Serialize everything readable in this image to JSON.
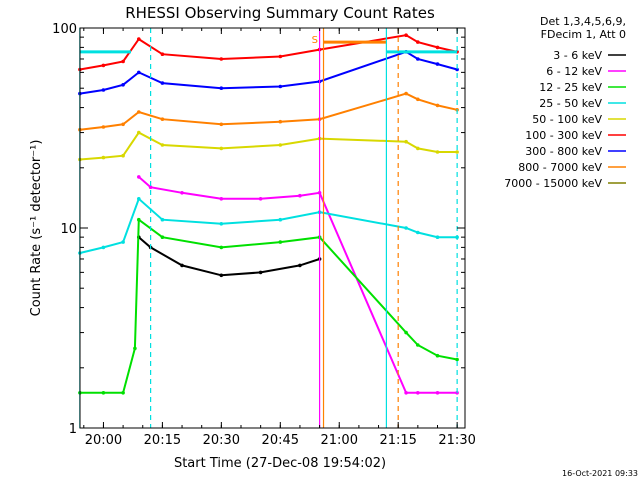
{
  "chart_data": {
    "type": "line",
    "title": "RHESSI Observing Summary Count Rates",
    "xlabel": "Start Time (27-Dec-08 19:54:02)",
    "ylabel": "Count Rate (s⁻¹ detector⁻¹)",
    "y_scale": "log",
    "ylim": [
      1,
      100
    ],
    "xlim": [
      "19:54:02",
      "21:32:00"
    ],
    "x_ticks": [
      "20:00",
      "20:15",
      "20:30",
      "20:45",
      "21:00",
      "21:15",
      "21:30"
    ],
    "y_ticks": [
      "1",
      "10",
      "100"
    ],
    "grid": false,
    "legend_position": "right",
    "legend_header": [
      "Det 1,3,4,5,6,9,",
      "FDecim 1, Att 0"
    ],
    "series": [
      {
        "name": "3 - 6 keV",
        "color": "#000000",
        "x": [
          "20:09",
          "20:12",
          "20:20",
          "20:30",
          "20:40",
          "20:50",
          "20:55"
        ],
        "y": [
          9,
          8,
          6.5,
          5.8,
          6,
          6.5,
          7
        ]
      },
      {
        "name": "6 - 12 keV",
        "color": "#ff00ff",
        "x": [
          "20:09",
          "20:12",
          "20:20",
          "20:30",
          "20:40",
          "20:50",
          "20:55",
          "21:17",
          "21:20",
          "21:25",
          "21:30"
        ],
        "y": [
          18,
          16,
          15,
          14,
          14,
          14.5,
          15,
          1.5,
          1.5,
          1.5,
          1.5
        ]
      },
      {
        "name": "12 - 25 keV",
        "color": "#00e000",
        "x": [
          "19:54",
          "20:00",
          "20:05",
          "20:08",
          "20:09",
          "20:15",
          "20:30",
          "20:45",
          "20:55",
          "21:17",
          "21:20",
          "21:25",
          "21:30"
        ],
        "y": [
          1.5,
          1.5,
          1.5,
          2.5,
          11,
          9,
          8,
          8.5,
          9,
          3,
          2.6,
          2.3,
          2.2
        ]
      },
      {
        "name": "25 - 50 keV",
        "color": "#00e0e0",
        "x": [
          "19:54",
          "20:00",
          "20:05",
          "20:09",
          "20:15",
          "20:30",
          "20:45",
          "20:55",
          "21:17",
          "21:20",
          "21:25",
          "21:30"
        ],
        "y": [
          7.5,
          8,
          8.5,
          14,
          11,
          10.5,
          11,
          12,
          10,
          9.5,
          9,
          9
        ]
      },
      {
        "name": "50 - 100 keV",
        "color": "#d8d800",
        "x": [
          "19:54",
          "20:00",
          "20:05",
          "20:09",
          "20:15",
          "20:30",
          "20:45",
          "20:55",
          "21:17",
          "21:20",
          "21:25",
          "21:30"
        ],
        "y": [
          22,
          22.5,
          23,
          30,
          26,
          25,
          26,
          28,
          27,
          25,
          24,
          24
        ]
      },
      {
        "name": "100 - 300 keV",
        "color": "#ff0000",
        "x": [
          "19:54",
          "20:00",
          "20:05",
          "20:09",
          "20:15",
          "20:30",
          "20:45",
          "20:55",
          "21:17",
          "21:20",
          "21:25",
          "21:30"
        ],
        "y": [
          62,
          65,
          68,
          88,
          74,
          70,
          72,
          78,
          92,
          85,
          80,
          76
        ]
      },
      {
        "name": "300 - 800 keV",
        "color": "#0000ff",
        "x": [
          "19:54",
          "20:00",
          "20:05",
          "20:09",
          "20:15",
          "20:30",
          "20:45",
          "20:55",
          "21:17",
          "21:20",
          "21:25",
          "21:30"
        ],
        "y": [
          47,
          49,
          52,
          60,
          53,
          50,
          51,
          54,
          76,
          70,
          66,
          62
        ]
      },
      {
        "name": "800 - 7000 keV",
        "color": "#ff8000",
        "x": [
          "19:54",
          "20:00",
          "20:05",
          "20:09",
          "20:15",
          "20:30",
          "20:45",
          "20:55",
          "21:17",
          "21:20",
          "21:25",
          "21:30"
        ],
        "y": [
          31,
          32,
          33,
          38,
          35,
          33,
          34,
          35,
          47,
          44,
          41,
          39
        ]
      },
      {
        "name": "7000 - 15000 keV",
        "color": "#808000",
        "x": [],
        "y": []
      }
    ],
    "attenuator_bars": [
      {
        "color": "#00e0e0",
        "x": [
          "19:54",
          "20:07"
        ],
        "y": 76
      },
      {
        "color": "#00e0e0",
        "x": [
          "21:12",
          "21:30"
        ],
        "y": 76
      },
      {
        "color": "#ff8000",
        "x": [
          "20:56",
          "21:12"
        ],
        "y": 85
      }
    ],
    "vertical_markers": [
      {
        "color": "#00e0e0",
        "style": "solid",
        "x": "19:54"
      },
      {
        "color": "#00e0e0",
        "style": "dashed",
        "x": "20:12"
      },
      {
        "color": "#ff00ff",
        "style": "solid",
        "x": "20:55"
      },
      {
        "color": "#ff8000",
        "style": "solid",
        "x": "20:56"
      },
      {
        "color": "#00e0e0",
        "style": "solid",
        "x": "21:12"
      },
      {
        "color": "#ff8000",
        "style": "dashed",
        "x": "21:15"
      },
      {
        "color": "#00e0e0",
        "style": "dashed",
        "x": "21:30"
      }
    ],
    "annotations": [
      {
        "text": "S",
        "x": "20:55",
        "y": 92,
        "color": "#ff8000"
      }
    ],
    "timestamp": "16-Oct-2021 09:33"
  }
}
